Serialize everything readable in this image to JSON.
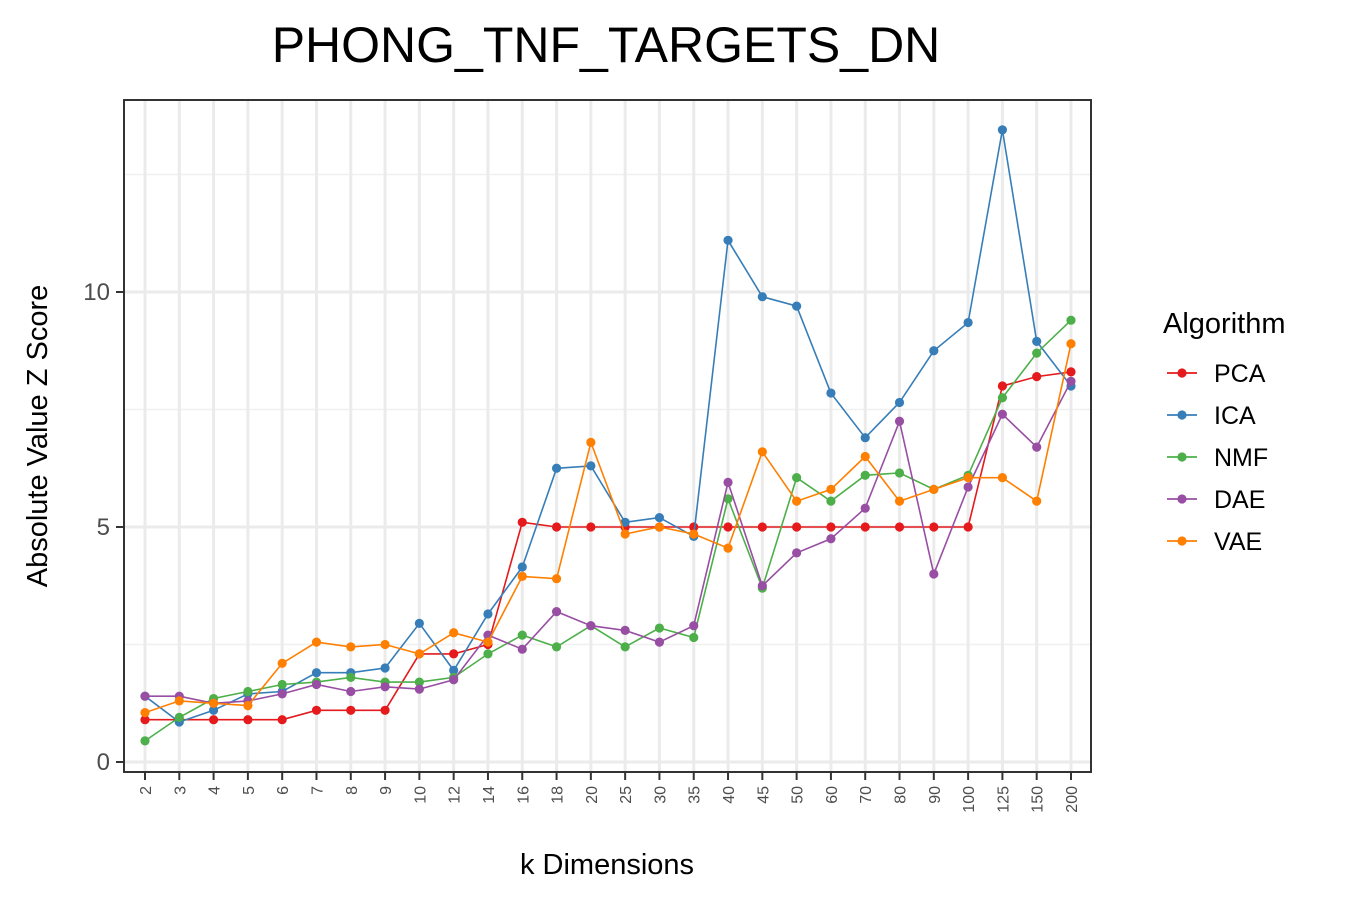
{
  "chart_data": {
    "type": "line",
    "title": "PHONG_TNF_TARGETS_DN",
    "xlabel": "k Dimensions",
    "ylabel": "Absolute Value Z Score",
    "categories": [
      "2",
      "3",
      "4",
      "5",
      "6",
      "7",
      "8",
      "9",
      "10",
      "12",
      "14",
      "16",
      "18",
      "20",
      "25",
      "30",
      "35",
      "40",
      "45",
      "50",
      "60",
      "70",
      "80",
      "90",
      "100",
      "125",
      "150",
      "200"
    ],
    "yticks": [
      "0",
      "5",
      "10"
    ],
    "ylim": [
      -0.3,
      14.0
    ],
    "grid": true,
    "legend_title": "Algorithm",
    "legend_position": "right",
    "series": [
      {
        "name": "PCA",
        "color": "#e41a1c",
        "values": [
          0.9,
          0.9,
          0.9,
          0.9,
          0.9,
          1.1,
          1.1,
          1.1,
          2.3,
          2.3,
          2.5,
          5.1,
          5.0,
          5.0,
          5.0,
          5.0,
          5.0,
          5.0,
          5.0,
          5.0,
          5.0,
          5.0,
          5.0,
          5.0,
          5.0,
          8.0,
          8.2,
          8.3
        ]
      },
      {
        "name": "ICA",
        "color": "#377eb8",
        "values": [
          1.4,
          0.85,
          1.1,
          1.45,
          1.5,
          1.9,
          1.9,
          2.0,
          2.95,
          1.95,
          3.15,
          4.15,
          6.25,
          6.3,
          5.1,
          5.2,
          4.8,
          11.1,
          9.9,
          9.7,
          7.85,
          6.9,
          7.65,
          8.75,
          9.35,
          13.45,
          8.95,
          8.0
        ]
      },
      {
        "name": "NMF",
        "color": "#4daf4a",
        "values": [
          0.45,
          0.95,
          1.35,
          1.5,
          1.65,
          1.7,
          1.8,
          1.7,
          1.7,
          1.8,
          2.3,
          2.7,
          2.45,
          2.9,
          2.45,
          2.85,
          2.65,
          5.6,
          3.7,
          6.05,
          5.55,
          6.1,
          6.15,
          5.8,
          6.1,
          7.75,
          8.7,
          9.4
        ]
      },
      {
        "name": "DAE",
        "color": "#984ea3",
        "values": [
          1.4,
          1.4,
          1.25,
          1.3,
          1.45,
          1.65,
          1.5,
          1.6,
          1.55,
          1.75,
          2.7,
          2.4,
          3.2,
          2.9,
          2.8,
          2.55,
          2.9,
          5.95,
          3.75,
          4.45,
          4.75,
          5.4,
          7.25,
          4.0,
          5.85,
          7.4,
          6.7,
          8.1
        ]
      },
      {
        "name": "VAE",
        "color": "#ff7f00",
        "values": [
          1.05,
          1.3,
          1.25,
          1.2,
          2.1,
          2.55,
          2.45,
          2.5,
          2.3,
          2.75,
          2.55,
          3.95,
          3.9,
          6.8,
          4.85,
          5.0,
          4.85,
          4.55,
          6.6,
          5.55,
          5.8,
          6.5,
          5.55,
          5.8,
          6.05,
          6.05,
          5.55,
          8.9
        ]
      }
    ]
  }
}
